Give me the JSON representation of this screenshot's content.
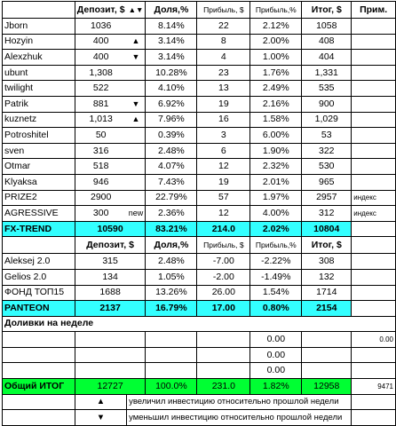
{
  "header": {
    "name": "",
    "deposit": "Депозит, $",
    "arrows": "▲▼",
    "share": "Доля,%",
    "profit": "Прибыль, $",
    "profit_pct": "Прибыль,%",
    "total": "Итог, $",
    "note": "Прим."
  },
  "rows": [
    {
      "name": "Jborn",
      "arrow": "",
      "deposit": "1036",
      "flag": "",
      "share": "8.14%",
      "profit": "22",
      "profit_pct": "2.12%",
      "total": "1058",
      "note": ""
    },
    {
      "name": "Hozyin",
      "arrow": "▲",
      "deposit": "400",
      "flag": "",
      "share": "3.14%",
      "profit": "8",
      "profit_pct": "2.00%",
      "total": "408",
      "note": ""
    },
    {
      "name": "Alexzhuk",
      "arrow": "▼",
      "deposit": "400",
      "flag": "",
      "share": "3.14%",
      "profit": "4",
      "profit_pct": "1.00%",
      "total": "404",
      "note": ""
    },
    {
      "name": "ubunt",
      "arrow": "",
      "deposit": "1,308",
      "flag": "",
      "share": "10.28%",
      "profit": "23",
      "profit_pct": "1.76%",
      "total": "1,331",
      "note": ""
    },
    {
      "name": "twilight",
      "arrow": "",
      "deposit": "522",
      "flag": "",
      "share": "4.10%",
      "profit": "13",
      "profit_pct": "2.49%",
      "total": "535",
      "note": ""
    },
    {
      "name": "Patrik",
      "arrow": "▼",
      "deposit": "881",
      "flag": "",
      "share": "6.92%",
      "profit": "19",
      "profit_pct": "2.16%",
      "total": "900",
      "note": ""
    },
    {
      "name": "kuznetz",
      "arrow": "▲",
      "deposit": "1,013",
      "flag": "",
      "share": "7.96%",
      "profit": "16",
      "profit_pct": "1.58%",
      "total": "1,029",
      "note": ""
    },
    {
      "name": "Potroshitel",
      "arrow": "",
      "deposit": "50",
      "flag": "",
      "share": "0.39%",
      "profit": "3",
      "profit_pct": "6.00%",
      "total": "53",
      "note": ""
    },
    {
      "name": "sven",
      "arrow": "",
      "deposit": "316",
      "flag": "",
      "share": "2.48%",
      "profit": "6",
      "profit_pct": "1.90%",
      "total": "322",
      "note": ""
    },
    {
      "name": "Otmar",
      "arrow": "",
      "deposit": "518",
      "flag": "",
      "share": "4.07%",
      "profit": "12",
      "profit_pct": "2.32%",
      "total": "530",
      "note": ""
    },
    {
      "name": "Klyaksa",
      "arrow": "",
      "deposit": "946",
      "flag": "",
      "share": "7.43%",
      "profit": "19",
      "profit_pct": "2.01%",
      "total": "965",
      "note": ""
    },
    {
      "name": "PRIZE2",
      "arrow": "",
      "deposit": "2900",
      "flag": "",
      "share": "22.79%",
      "profit": "57",
      "profit_pct": "1.97%",
      "total": "2957",
      "note": "индекс"
    },
    {
      "name": "AGRESSIVE",
      "arrow": "",
      "deposit": "300",
      "flag": "new",
      "share": "2.36%",
      "profit": "12",
      "profit_pct": "4.00%",
      "total": "312",
      "note": "индекс"
    }
  ],
  "fx_trend": {
    "name": "FX-TREND",
    "deposit": "10590",
    "share": "83.21%",
    "profit": "214.0",
    "profit_pct": "2.02%",
    "total": "10804"
  },
  "header2": {
    "deposit": "Депозит, $",
    "share": "Доля,%",
    "profit": "Прибыль, $",
    "profit_pct": "Прибыль,%",
    "total": "Итог, $"
  },
  "rows2": [
    {
      "name": "Aleksej 2.0",
      "deposit": "315",
      "share": "2.48%",
      "profit": "-7.00",
      "profit_pct": "-2.22%",
      "total": "308"
    },
    {
      "name": "Gelios 2.0",
      "deposit": "134",
      "share": "1.05%",
      "profit": "-2.00",
      "profit_pct": "-1.49%",
      "total": "132"
    },
    {
      "name": "ФОНД ТОП15",
      "deposit": "1688",
      "share": "13.26%",
      "profit": "26.00",
      "profit_pct": "1.54%",
      "total": "1714"
    }
  ],
  "panteon": {
    "name": "PANTEON",
    "deposit": "2137",
    "share": "16.79%",
    "profit": "17.00",
    "profit_pct": "0.80%",
    "total": "2154"
  },
  "dolivki": {
    "title": "Доливки на неделе",
    "rows": [
      {
        "share": "0.00",
        "note": "0.00"
      },
      {
        "share": "0.00",
        "note": ""
      },
      {
        "share": "0.00",
        "note": ""
      }
    ]
  },
  "grand_total": {
    "name": "Общий ИТОГ",
    "deposit": "12727",
    "share": "100.0%",
    "profit": "231.0",
    "profit_pct": "1.82%",
    "total": "12958",
    "note": "9471"
  },
  "legend": [
    {
      "arrow": "▲",
      "text": "увеличил инвестицию относительно прошлой недели"
    },
    {
      "arrow": "▼",
      "text": "уменьшил инвестицию относительно прошлой недели"
    }
  ]
}
